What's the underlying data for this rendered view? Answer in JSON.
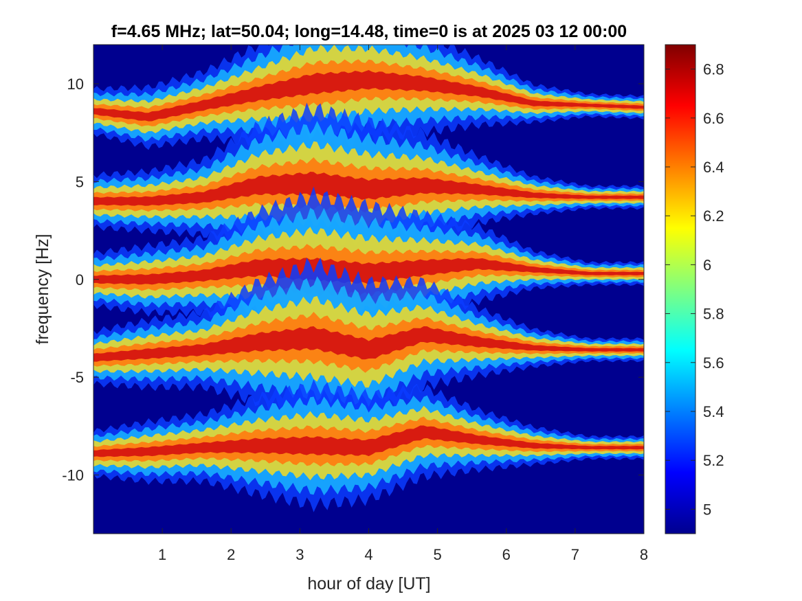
{
  "chart_data": {
    "type": "heatmap",
    "title": "f=4.65 MHz;  lat=50.04; long=14.48, time=0 is at 2025 03 12 00:00",
    "xlabel": "hour of day [UT]",
    "ylabel": "frequency [Hz]",
    "xlim": [
      0,
      8
    ],
    "ylim": [
      -13,
      12
    ],
    "xticks": [
      1,
      2,
      3,
      4,
      5,
      6,
      7,
      8
    ],
    "xtick_labels": [
      "1",
      "2",
      "3",
      "4",
      "5",
      "6",
      "7",
      "8"
    ],
    "yticks": [
      10,
      5,
      0,
      -5,
      -10
    ],
    "ytick_labels": [
      "10",
      "5",
      "0",
      "-5",
      "-10"
    ],
    "colorbar": {
      "colormap": "jet",
      "clim": [
        4.9,
        6.9
      ],
      "ticks": [
        6.8,
        6.6,
        6.4,
        6.2,
        6,
        5.8,
        5.6,
        5.4,
        5.2,
        5
      ],
      "tick_labels": [
        "6.8",
        "6.6",
        "6.4",
        "6.2",
        "6",
        "5.8",
        "5.6",
        "5.4",
        "5.2",
        "5"
      ]
    },
    "background_color": "#00008f",
    "bands": [
      {
        "freq_hz": [
          8.6,
          8.3,
          8.9,
          9.5,
          10.0,
          10.2,
          10.0,
          9.6,
          9.0,
          8.9,
          8.8
        ],
        "width_hz": [
          0.6,
          0.8,
          0.9,
          1.3,
          1.8,
          1.6,
          1.3,
          0.9,
          0.5,
          0.3,
          0.3
        ]
      },
      {
        "freq_hz": [
          4.0,
          4.0,
          4.2,
          4.8,
          4.9,
          4.6,
          4.8,
          4.6,
          4.3,
          4.2,
          4.2
        ],
        "width_hz": [
          0.7,
          0.8,
          1.0,
          1.6,
          2.0,
          1.8,
          1.4,
          0.9,
          0.5,
          0.3,
          0.3
        ]
      },
      {
        "freq_hz": [
          0.0,
          0.0,
          0.2,
          0.6,
          0.5,
          0.3,
          0.6,
          0.8,
          0.5,
          0.3,
          0.3
        ],
        "width_hz": [
          0.7,
          0.9,
          1.0,
          1.5,
          2.0,
          1.8,
          1.4,
          1.0,
          0.5,
          0.3,
          0.3
        ]
      },
      {
        "freq_hz": [
          -4.0,
          -3.8,
          -3.6,
          -3.2,
          -3.0,
          -3.6,
          -2.8,
          -3.2,
          -3.5,
          -3.6,
          -3.6
        ],
        "width_hz": [
          0.7,
          0.9,
          1.0,
          1.6,
          2.0,
          1.8,
          1.4,
          0.9,
          0.5,
          0.3,
          0.3
        ]
      },
      {
        "freq_hz": [
          -8.9,
          -8.8,
          -8.6,
          -8.5,
          -8.5,
          -8.6,
          -7.8,
          -8.2,
          -8.5,
          -8.6,
          -8.6
        ],
        "width_hz": [
          0.6,
          0.8,
          0.9,
          1.3,
          1.6,
          1.4,
          1.2,
          0.8,
          0.5,
          0.3,
          0.3
        ]
      }
    ],
    "band_time_h": [
      0,
      0.8,
      1.6,
      2.4,
      3.2,
      4.0,
      4.8,
      5.6,
      6.4,
      7.2,
      8.0
    ]
  }
}
